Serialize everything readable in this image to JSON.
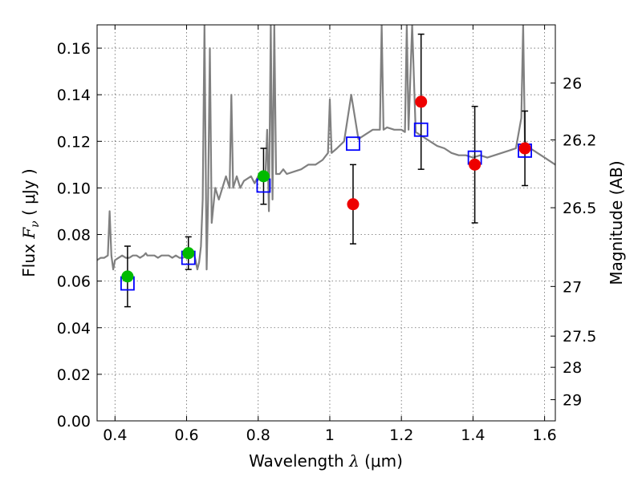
{
  "chart_data": {
    "type": "scatter",
    "title": "",
    "x_label": {
      "prefix": "Wavelength  ",
      "symbol": "λ",
      "unit": " (μm)"
    },
    "y_label": {
      "prefix": "Flux  ",
      "symbol": "F",
      "subscript": "ν",
      "unit": "  ( μJy )"
    },
    "y2_label": "Magnitude (AB)",
    "xlim": [
      0.35,
      1.63
    ],
    "ylim": [
      0.0,
      0.17
    ],
    "grid": true,
    "x_ticks": [
      0.4,
      0.6,
      0.8,
      1.0,
      1.2,
      1.4,
      1.6
    ],
    "x_tick_labels": [
      "0.4",
      "0.6",
      "0.8",
      "1",
      "1.2",
      "1.4",
      "1.6"
    ],
    "y_ticks": [
      0.0,
      0.02,
      0.04,
      0.06,
      0.08,
      0.1,
      0.12,
      0.14,
      0.16
    ],
    "y_tick_labels": [
      "0.00",
      "0.02",
      "0.04",
      "0.06",
      "0.08",
      "0.10",
      "0.12",
      "0.14",
      "0.16"
    ],
    "y2_ticks": [
      {
        "label": "26",
        "flux": 0.145
      },
      {
        "label": "26.2",
        "flux": 0.1206
      },
      {
        "label": "26.5",
        "flux": 0.0915
      },
      {
        "label": "27",
        "flux": 0.0577
      },
      {
        "label": "27.5",
        "flux": 0.0364
      },
      {
        "label": "28",
        "flux": 0.023
      },
      {
        "label": "29",
        "flux": 0.0091
      }
    ],
    "colors": {
      "model": "#808080",
      "model_photometry": "#0000ff",
      "green_points": "#00bb00",
      "red_points": "#ee0000",
      "errorbar": "#000000"
    },
    "series": [
      {
        "kind": "model_spectrum",
        "x": [
          0.35,
          0.36,
          0.37,
          0.38,
          0.385,
          0.39,
          0.395,
          0.4,
          0.41,
          0.42,
          0.43,
          0.44,
          0.45,
          0.46,
          0.47,
          0.48,
          0.486,
          0.49,
          0.5,
          0.51,
          0.52,
          0.53,
          0.54,
          0.55,
          0.56,
          0.57,
          0.58,
          0.59,
          0.6,
          0.61,
          0.62,
          0.625,
          0.63,
          0.635,
          0.64,
          0.645,
          0.65,
          0.656,
          0.66,
          0.665,
          0.67,
          0.68,
          0.69,
          0.7,
          0.71,
          0.72,
          0.725,
          0.73,
          0.74,
          0.75,
          0.76,
          0.78,
          0.79,
          0.8,
          0.81,
          0.82,
          0.825,
          0.83,
          0.835,
          0.84,
          0.845,
          0.85,
          0.86,
          0.87,
          0.88,
          0.9,
          0.92,
          0.94,
          0.96,
          0.98,
          0.995,
          1.0,
          1.005,
          1.02,
          1.04,
          1.06,
          1.08,
          1.1,
          1.12,
          1.14,
          1.145,
          1.15,
          1.16,
          1.18,
          1.2,
          1.21,
          1.215,
          1.22,
          1.23,
          1.24,
          1.26,
          1.28,
          1.3,
          1.32,
          1.34,
          1.36,
          1.38,
          1.4,
          1.42,
          1.44,
          1.46,
          1.48,
          1.5,
          1.52,
          1.535,
          1.54,
          1.545,
          1.56,
          1.58,
          1.6,
          1.63
        ],
        "y": [
          0.069,
          0.07,
          0.07,
          0.071,
          0.09,
          0.071,
          0.065,
          0.069,
          0.07,
          0.071,
          0.07,
          0.07,
          0.071,
          0.071,
          0.07,
          0.071,
          0.072,
          0.071,
          0.071,
          0.071,
          0.07,
          0.071,
          0.071,
          0.071,
          0.07,
          0.071,
          0.07,
          0.07,
          0.071,
          0.071,
          0.072,
          0.069,
          0.065,
          0.068,
          0.075,
          0.095,
          0.17,
          0.065,
          0.095,
          0.16,
          0.085,
          0.1,
          0.095,
          0.1,
          0.105,
          0.1,
          0.14,
          0.1,
          0.105,
          0.1,
          0.103,
          0.105,
          0.102,
          0.105,
          0.107,
          0.105,
          0.125,
          0.09,
          0.17,
          0.095,
          0.17,
          0.106,
          0.106,
          0.108,
          0.106,
          0.107,
          0.108,
          0.11,
          0.11,
          0.112,
          0.115,
          0.138,
          0.115,
          0.117,
          0.12,
          0.14,
          0.121,
          0.123,
          0.125,
          0.125,
          0.17,
          0.125,
          0.126,
          0.125,
          0.125,
          0.124,
          0.17,
          0.125,
          0.17,
          0.124,
          0.122,
          0.12,
          0.118,
          0.117,
          0.115,
          0.114,
          0.114,
          0.113,
          0.114,
          0.113,
          0.114,
          0.115,
          0.116,
          0.117,
          0.13,
          0.17,
          0.12,
          0.117,
          0.115,
          0.113,
          0.11
        ]
      },
      {
        "kind": "model_photometry",
        "marker": "square",
        "x": [
          0.435,
          0.605,
          0.815,
          1.065,
          1.255,
          1.405,
          1.545
        ],
        "y": [
          0.059,
          0.07,
          0.101,
          0.119,
          0.125,
          0.113,
          0.116
        ]
      },
      {
        "kind": "observed_green",
        "marker": "circle",
        "x": [
          0.435,
          0.605,
          0.815
        ],
        "y": [
          0.062,
          0.072,
          0.105
        ],
        "yerr": [
          0.013,
          0.007,
          0.012
        ]
      },
      {
        "kind": "observed_red",
        "marker": "circle",
        "x": [
          1.065,
          1.255,
          1.405,
          1.545
        ],
        "y": [
          0.093,
          0.137,
          0.11,
          0.117
        ],
        "yerr": [
          0.017,
          0.029,
          0.025,
          0.016
        ]
      }
    ]
  }
}
